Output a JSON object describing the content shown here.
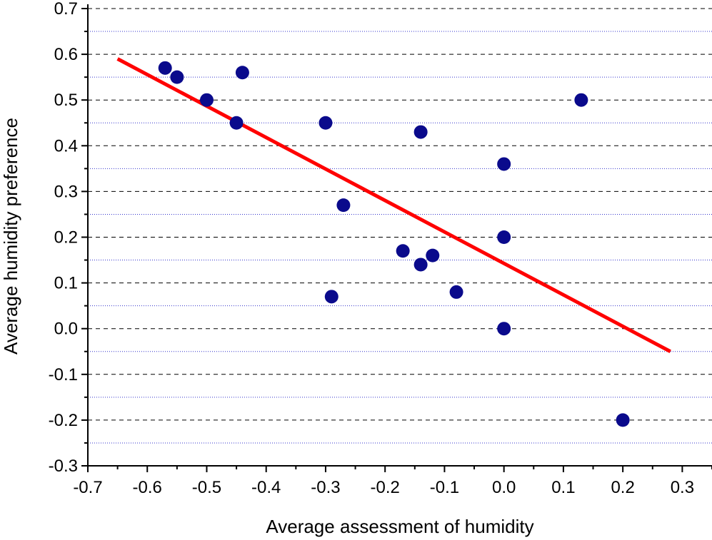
{
  "chart_data": {
    "type": "scatter",
    "title": "",
    "xlabel": "Average assessment of humidity",
    "ylabel": "Average humidity preference",
    "xlim": [
      -0.7,
      0.35
    ],
    "ylim": [
      -0.3,
      0.7
    ],
    "x_ticks": [
      "-0.7",
      "-0.6",
      "-0.5",
      "-0.4",
      "-0.3",
      "-0.2",
      "-0.1",
      "0.0",
      "0.1",
      "0.2",
      "0.3"
    ],
    "y_ticks": [
      "0.7",
      "0.6",
      "0.5",
      "0.4",
      "0.3",
      "0.2",
      "0.1",
      "0.0",
      "-0.1",
      "-0.2",
      "-0.3"
    ],
    "grid": {
      "major": "dashed",
      "minor": "dotted",
      "axis": "y"
    },
    "series": [
      {
        "kind": "points",
        "color": "#0a0a8c",
        "points": [
          {
            "x": -0.57,
            "y": 0.57
          },
          {
            "x": -0.55,
            "y": 0.55
          },
          {
            "x": -0.44,
            "y": 0.56
          },
          {
            "x": -0.5,
            "y": 0.5
          },
          {
            "x": -0.45,
            "y": 0.45
          },
          {
            "x": -0.3,
            "y": 0.45
          },
          {
            "x": -0.27,
            "y": 0.27
          },
          {
            "x": -0.29,
            "y": 0.07
          },
          {
            "x": -0.17,
            "y": 0.17
          },
          {
            "x": -0.14,
            "y": 0.14
          },
          {
            "x": -0.12,
            "y": 0.16
          },
          {
            "x": -0.14,
            "y": 0.43
          },
          {
            "x": -0.08,
            "y": 0.08
          },
          {
            "x": 0.0,
            "y": 0.36
          },
          {
            "x": 0.0,
            "y": 0.2
          },
          {
            "x": 0.0,
            "y": 0.0
          },
          {
            "x": 0.13,
            "y": 0.5
          },
          {
            "x": 0.2,
            "y": -0.2
          }
        ]
      },
      {
        "kind": "fit-line",
        "color": "#ff0000",
        "x": [
          -0.65,
          0.28
        ],
        "y": [
          0.59,
          -0.05
        ]
      }
    ]
  }
}
